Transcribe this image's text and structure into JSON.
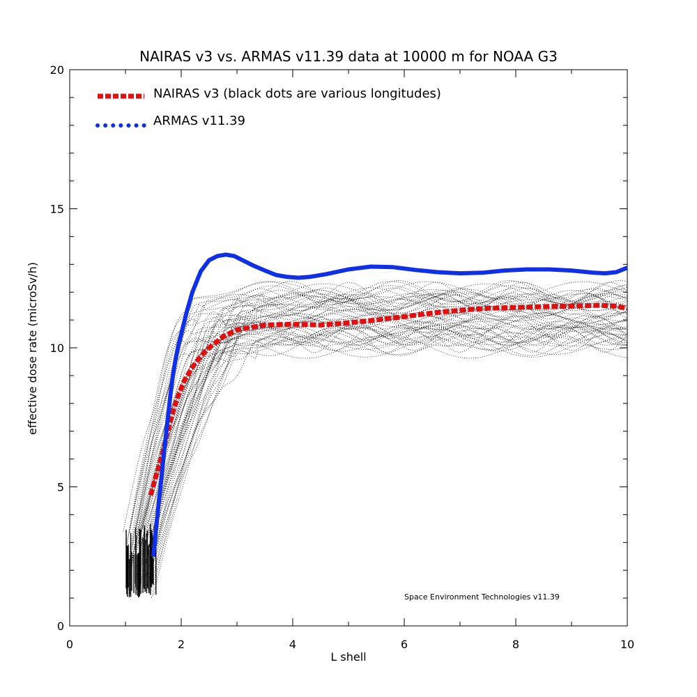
{
  "chart_data": {
    "type": "line",
    "title": "NAIRAS  v3 vs. ARMAS v11.39 data at 10000 m for NOAA G3",
    "xlabel": "L shell",
    "ylabel": "effective dose rate (microSv/h)",
    "xlim": [
      0,
      10
    ],
    "ylim": [
      0,
      20
    ],
    "xticks": [
      0,
      2,
      4,
      6,
      8,
      10
    ],
    "yticks": [
      0,
      5,
      10,
      15,
      20
    ],
    "xtick_labels": [
      "0",
      "2",
      "4",
      "6",
      "8",
      "10"
    ],
    "ytick_labels": [
      "0",
      "5",
      "10",
      "15",
      "20"
    ],
    "grid": false,
    "legend_placement": "top-left",
    "credit": "Space Environment Technologies v11.39",
    "series": [
      {
        "name": "NAIRAS v3 (black dots are various longitudes)",
        "color": "#e01010",
        "style": "dashed",
        "x": [
          1.45,
          1.55,
          1.65,
          1.75,
          1.85,
          1.95,
          2.05,
          2.2,
          2.35,
          2.5,
          2.75,
          3.0,
          3.5,
          4.0,
          4.5,
          5.0,
          5.5,
          6.0,
          6.5,
          7.0,
          7.5,
          8.0,
          8.5,
          9.0,
          9.5,
          9.8,
          10.0
        ],
        "y": [
          4.7,
          5.4,
          6.1,
          6.9,
          7.7,
          8.3,
          8.8,
          9.3,
          9.7,
          10.0,
          10.4,
          10.65,
          10.82,
          10.85,
          10.82,
          10.9,
          11.0,
          11.12,
          11.25,
          11.35,
          11.42,
          11.45,
          11.48,
          11.5,
          11.53,
          11.5,
          11.42
        ]
      },
      {
        "name": "ARMAS v11.39",
        "color": "#1030e8",
        "style": "dotted",
        "x": [
          1.5,
          1.55,
          1.6,
          1.65,
          1.7,
          1.75,
          1.8,
          1.85,
          1.9,
          1.95,
          2.0,
          2.1,
          2.2,
          2.35,
          2.5,
          2.65,
          2.8,
          2.95,
          3.1,
          3.3,
          3.5,
          3.7,
          3.9,
          4.1,
          4.3,
          4.6,
          5.0,
          5.4,
          5.8,
          6.2,
          6.6,
          7.0,
          7.4,
          7.8,
          8.2,
          8.6,
          9.0,
          9.4,
          9.6,
          9.8,
          10.0
        ],
        "y": [
          2.5,
          3.5,
          4.5,
          5.4,
          6.4,
          7.3,
          8.2,
          9.0,
          9.6,
          10.1,
          10.5,
          11.3,
          12.0,
          12.75,
          13.15,
          13.3,
          13.35,
          13.3,
          13.15,
          12.95,
          12.78,
          12.62,
          12.55,
          12.52,
          12.55,
          12.65,
          12.82,
          12.92,
          12.9,
          12.8,
          12.72,
          12.68,
          12.7,
          12.78,
          12.82,
          12.82,
          12.78,
          12.7,
          12.68,
          12.72,
          12.88
        ]
      }
    ]
  }
}
